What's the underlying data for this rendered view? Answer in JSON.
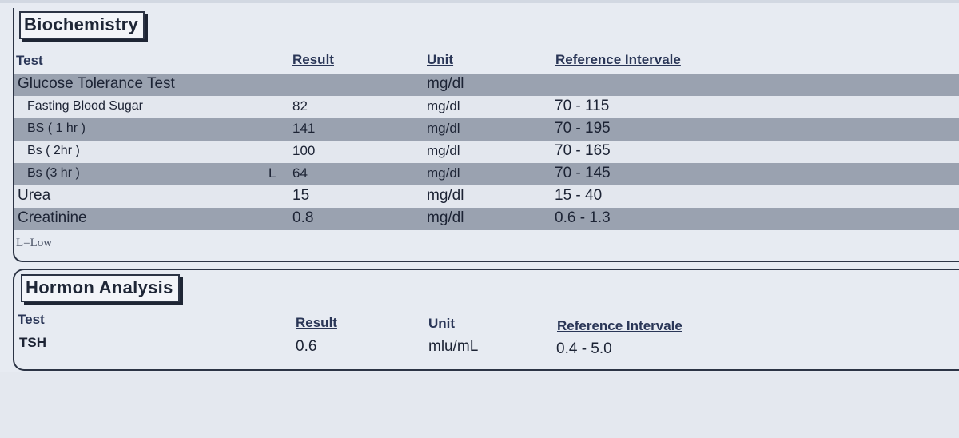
{
  "biochemistry": {
    "title": "Biochemistry",
    "headers": {
      "test": "Test",
      "result": "Result",
      "unit": "Unit",
      "reference": "Reference Intervale"
    },
    "rows": [
      {
        "test": "Glucose Tolerance Test",
        "flag": "",
        "result": "",
        "unit": "mg/dl",
        "reference": ""
      },
      {
        "test": "Fasting  Blood Sugar",
        "flag": "",
        "result": "82",
        "unit": "mg/dl",
        "reference": "70 - 115"
      },
      {
        "test": "BS ( 1 hr )",
        "flag": "",
        "result": "141",
        "unit": "mg/dl",
        "reference": "70 - 195"
      },
      {
        "test": "Bs ( 2hr )",
        "flag": "",
        "result": "100",
        "unit": "mg/dl",
        "reference": "70 - 165"
      },
      {
        "test": "Bs (3 hr )",
        "flag": "L",
        "result": "64",
        "unit": "mg/dl",
        "reference": "70 - 145"
      },
      {
        "test": "Urea",
        "flag": "",
        "result": "15",
        "unit": "mg/dl",
        "reference": "15 - 40"
      },
      {
        "test": "Creatinine",
        "flag": "",
        "result": "0.8",
        "unit": "mg/dl",
        "reference": "0.6 - 1.3"
      }
    ],
    "legend": "L=Low"
  },
  "hormone": {
    "title": "Hormon Analysis",
    "headers": {
      "test": "Test",
      "result": "Result",
      "unit": "Unit",
      "reference": "Reference Intervale"
    },
    "rows": [
      {
        "test": "TSH",
        "result": "0.6",
        "unit": "mlu/mL",
        "reference": "0.4 - 5.0"
      }
    ]
  }
}
